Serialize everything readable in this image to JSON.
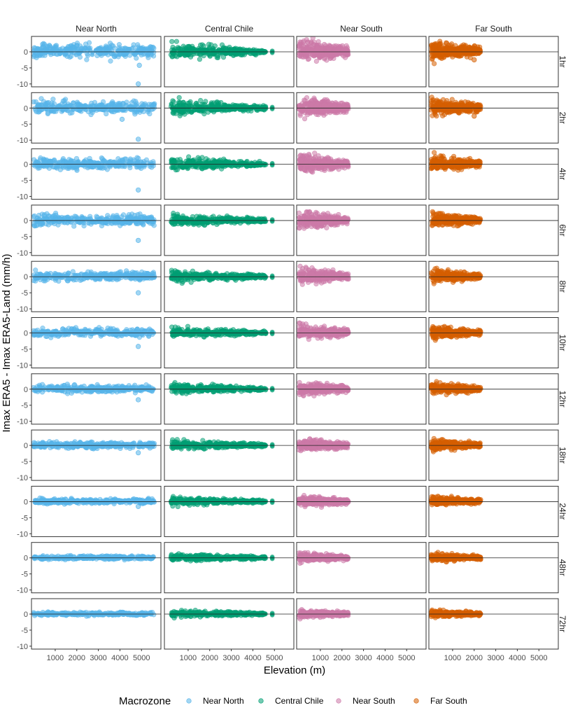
{
  "chart_data": {
    "type": "scatter",
    "facet_cols": [
      "Near North",
      "Central Chile",
      "Near South",
      "Far South"
    ],
    "facet_rows": [
      "1hr",
      "2hr",
      "4hr",
      "6hr",
      "8hr",
      "10hr",
      "12hr",
      "18hr",
      "24hr",
      "48hr",
      "72hr"
    ],
    "xlabel": "Elevation (m)",
    "ylabel": "Imax ERA5 - Imax ERA5-Land (mm/h)",
    "xlim": [
      -100,
      5900
    ],
    "ylim": [
      -10.9,
      4.8
    ],
    "xticks": [
      "1000",
      "2000",
      "3000",
      "4000",
      "5000"
    ],
    "xtick_values": [
      1000,
      2000,
      3000,
      4000,
      5000
    ],
    "yticks": [
      "-10",
      "-5",
      "0"
    ],
    "ytick_values": [
      -10,
      -5,
      0
    ],
    "reference_line_y": 0,
    "grid": false,
    "legend": {
      "title": "Macrozone",
      "placement": "bottom"
    },
    "series": [
      {
        "name": "Near North",
        "color": "#56B4E9",
        "elevation_range": [
          0,
          5600
        ],
        "spread_low_elevation": [
          2.6,
          2.2,
          2.1,
          1.9,
          1.6,
          1.4,
          1.3,
          1.1,
          0.9,
          0.7,
          0.6
        ],
        "spread_high_elevation": [
          2.4,
          2.1,
          2.0,
          1.8,
          1.5,
          1.3,
          1.2,
          1.0,
          0.8,
          0.6,
          0.5
        ]
      },
      {
        "name": "Central Chile",
        "color": "#009E73",
        "elevation_range": [
          200,
          4600
        ],
        "extra_elevation": 4900,
        "spread_low_elevation": [
          2.8,
          2.7,
          2.4,
          2.2,
          2.0,
          1.9,
          1.8,
          1.7,
          1.5,
          1.3,
          1.2
        ],
        "spread_high_elevation": [
          0.7,
          0.7,
          0.6,
          0.6,
          0.6,
          0.5,
          0.5,
          0.5,
          0.4,
          0.4,
          0.4
        ]
      },
      {
        "name": "Near South",
        "color": "#CC79A7",
        "elevation_range": [
          0,
          2300
        ],
        "spread_low_elevation": [
          4.0,
          3.8,
          3.4,
          3.0,
          2.8,
          2.6,
          2.4,
          2.1,
          1.9,
          1.6,
          1.4
        ],
        "spread_high_elevation": [
          1.5,
          1.4,
          1.3,
          1.2,
          1.1,
          1.0,
          1.0,
          0.9,
          0.8,
          0.7,
          0.6
        ]
      },
      {
        "name": "Far South",
        "color": "#D55E00",
        "elevation_range": [
          0,
          2300
        ],
        "spread_low_elevation": [
          3.6,
          3.2,
          2.8,
          2.6,
          2.4,
          2.2,
          2.1,
          1.9,
          1.7,
          1.4,
          1.2
        ],
        "spread_high_elevation": [
          1.3,
          1.2,
          1.1,
          1.0,
          0.9,
          0.9,
          0.8,
          0.8,
          0.7,
          0.6,
          0.5
        ]
      }
    ],
    "outliers": [
      {
        "macrozone": "Near North",
        "duration": "1hr",
        "x": 4850,
        "y": -10.0
      },
      {
        "macrozone": "Near North",
        "duration": "1hr",
        "x": 4900,
        "y": -4.2
      },
      {
        "macrozone": "Near North",
        "duration": "2hr",
        "x": 4850,
        "y": -9.7
      },
      {
        "macrozone": "Near North",
        "duration": "2hr",
        "x": 4100,
        "y": -3.5
      },
      {
        "macrozone": "Near North",
        "duration": "4hr",
        "x": 4850,
        "y": -8.0
      },
      {
        "macrozone": "Near North",
        "duration": "6hr",
        "x": 4850,
        "y": -6.2
      },
      {
        "macrozone": "Near North",
        "duration": "8hr",
        "x": 4850,
        "y": -5.0
      },
      {
        "macrozone": "Near North",
        "duration": "10hr",
        "x": 4850,
        "y": -4.2
      },
      {
        "macrozone": "Near North",
        "duration": "12hr",
        "x": 4850,
        "y": -3.3
      },
      {
        "macrozone": "Near North",
        "duration": "18hr",
        "x": 4850,
        "y": -2.3
      },
      {
        "macrozone": "Near North",
        "duration": "24hr",
        "x": 4850,
        "y": -1.5
      },
      {
        "macrozone": "Far South",
        "duration": "1hr",
        "x": 2000,
        "y": -2.5
      },
      {
        "macrozone": "Far South",
        "duration": "2hr",
        "x": 2000,
        "y": -2.5
      }
    ]
  }
}
